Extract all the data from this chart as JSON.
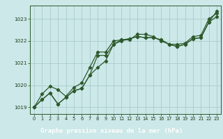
{
  "title": "Graphe pression niveau de la mer (hPa)",
  "bg_color": "#cce8e8",
  "plot_bg_color": "#cce8e8",
  "grid_color": "#aacccc",
  "line_color": "#2d5a2d",
  "text_color": "#1a3a1a",
  "xlabel_bg": "#2d5a2d",
  "xlabel_fg": "#ffffff",
  "xlim": [
    -0.5,
    23.5
  ],
  "ylim": [
    1018.7,
    1023.6
  ],
  "yticks": [
    1019,
    1020,
    1021,
    1022,
    1023
  ],
  "xticks": [
    0,
    1,
    2,
    3,
    4,
    5,
    6,
    7,
    8,
    9,
    10,
    11,
    12,
    13,
    14,
    15,
    16,
    17,
    18,
    19,
    20,
    21,
    22,
    23
  ],
  "series1": [
    1019.0,
    1019.35,
    1019.65,
    1019.15,
    1019.45,
    1019.75,
    1019.85,
    1020.45,
    1020.8,
    1021.1,
    1021.85,
    1022.0,
    1022.1,
    1022.2,
    1022.15,
    1022.15,
    1022.05,
    1021.85,
    1021.75,
    1021.85,
    1022.1,
    1022.15,
    1022.85,
    1023.1
  ],
  "series2": [
    1019.0,
    1019.6,
    1019.95,
    1019.8,
    1019.5,
    1019.9,
    1020.1,
    1020.8,
    1021.5,
    1021.5,
    1022.0,
    1022.05,
    1022.05,
    1022.3,
    1022.3,
    1022.2,
    1022.0,
    1021.85,
    1021.85,
    1021.9,
    1022.2,
    1022.25,
    1023.0,
    1023.25
  ],
  "series3": [
    1019.0,
    1019.35,
    1019.65,
    1019.15,
    1019.45,
    1019.75,
    1019.85,
    1020.45,
    1021.35,
    1021.35,
    1021.85,
    1022.05,
    1022.1,
    1022.2,
    1022.15,
    1022.15,
    1022.05,
    1021.85,
    1021.75,
    1021.85,
    1022.1,
    1022.15,
    1022.85,
    1023.35
  ]
}
